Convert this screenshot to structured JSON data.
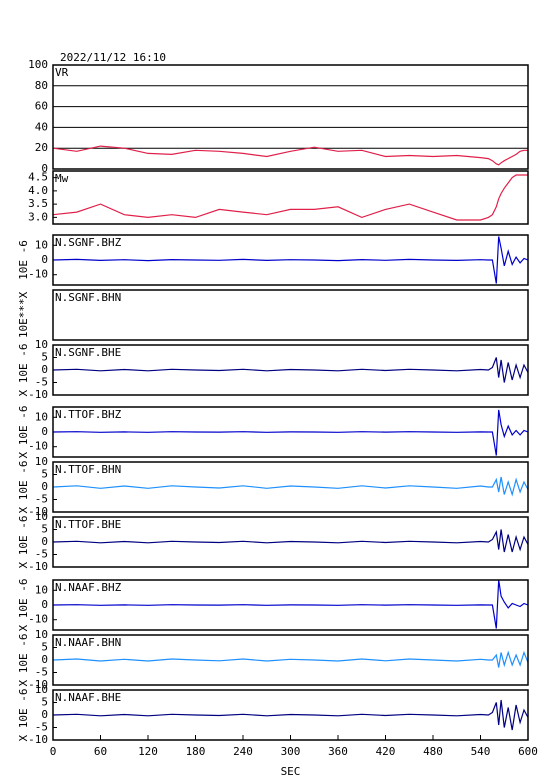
{
  "chart_data": [
    {
      "type": "line",
      "title": "2022/11/12 16:10",
      "label": "VR",
      "x": [
        0,
        30,
        60,
        90,
        120,
        150,
        180,
        210,
        240,
        270,
        300,
        330,
        360,
        390,
        420,
        450,
        480,
        510,
        540,
        550,
        555,
        560,
        563,
        566,
        570,
        575,
        580,
        585,
        590,
        595,
        600
      ],
      "series": [
        {
          "color": "#e0204a",
          "values": [
            20,
            17,
            22,
            20,
            15,
            14,
            18,
            17,
            15,
            12,
            17,
            21,
            17,
            18,
            12,
            13,
            12,
            13,
            11,
            10,
            8,
            5,
            4,
            6,
            8,
            10,
            12,
            14,
            17,
            18,
            18
          ]
        }
      ],
      "xlim": [
        0,
        600
      ],
      "ylim": [
        0,
        100
      ],
      "yticks": [
        0,
        20,
        40,
        60,
        80,
        100
      ],
      "grid": true
    },
    {
      "type": "line",
      "label": "Mw",
      "x": [
        0,
        30,
        60,
        90,
        120,
        150,
        180,
        210,
        240,
        270,
        300,
        330,
        360,
        390,
        420,
        450,
        480,
        510,
        540,
        550,
        555,
        560,
        563,
        566,
        570,
        575,
        580,
        585,
        590,
        595,
        600
      ],
      "series": [
        {
          "color": "#e0204a",
          "values": [
            3.1,
            3.2,
            3.5,
            3.1,
            3.0,
            3.1,
            3.0,
            3.3,
            3.2,
            3.1,
            3.3,
            3.3,
            3.4,
            3.0,
            3.3,
            3.5,
            3.2,
            2.9,
            2.9,
            3.0,
            3.1,
            3.4,
            3.7,
            3.9,
            4.1,
            4.3,
            4.5,
            4.6,
            4.6,
            4.6,
            4.6
          ]
        }
      ],
      "xlim": [
        0,
        600
      ],
      "ylim": [
        2.75,
        4.75
      ],
      "yticks": [
        {
          "value": 3,
          "label": "3.0"
        },
        3.5,
        {
          "value": 4,
          "label": "4.0"
        },
        4.5
      ]
    },
    {
      "type": "line",
      "label": "N.SGNF.BHZ",
      "ylabel": "10E -6",
      "x": [
        0,
        30,
        60,
        90,
        120,
        150,
        180,
        210,
        240,
        270,
        300,
        330,
        360,
        390,
        420,
        450,
        480,
        510,
        540,
        550,
        555,
        560,
        563,
        566,
        570,
        575,
        580,
        585,
        590,
        595,
        600
      ],
      "series": [
        {
          "color": "#0000cc",
          "values": [
            0,
            0.4,
            -0.3,
            0.2,
            -0.4,
            0.3,
            0,
            -0.2,
            0.4,
            -0.3,
            0.2,
            0,
            -0.4,
            0.3,
            -0.2,
            0.4,
            0,
            -0.3,
            0.2,
            0,
            0,
            -16,
            16,
            8,
            -4,
            6,
            -3,
            2,
            -2,
            1,
            0
          ]
        }
      ],
      "xlim": [
        0,
        600
      ],
      "ylim": [
        -17,
        17
      ],
      "yticks": [
        10,
        0,
        -10
      ]
    },
    {
      "type": "line",
      "label": "N.SGNF.BHN",
      "ylabel": "10E***X",
      "series": [],
      "xlim": [
        0,
        600
      ]
    },
    {
      "type": "line",
      "label": "N.SGNF.BHE",
      "ylabel": "X 10E -6",
      "x": [
        0,
        30,
        60,
        90,
        120,
        150,
        180,
        210,
        240,
        270,
        300,
        330,
        360,
        390,
        420,
        450,
        480,
        510,
        540,
        550,
        555,
        560,
        563,
        566,
        570,
        575,
        580,
        585,
        590,
        595,
        600
      ],
      "series": [
        {
          "color": "#000080",
          "values": [
            0,
            0.3,
            -0.3,
            0.2,
            -0.3,
            0.3,
            0,
            -0.2,
            0.3,
            -0.3,
            0.2,
            0,
            -0.3,
            0.3,
            -0.2,
            0.3,
            0,
            -0.3,
            0.2,
            0,
            1,
            5,
            -3,
            4,
            -5,
            3,
            -4,
            2,
            -3,
            2,
            -1
          ]
        }
      ],
      "xlim": [
        0,
        600
      ],
      "ylim": [
        -10,
        10
      ],
      "yticks": [
        10,
        5,
        0,
        -5,
        -10
      ]
    },
    {
      "type": "line",
      "label": "N.TTOF.BHZ",
      "ylabel": "X 10E -6",
      "x": [
        0,
        30,
        60,
        90,
        120,
        150,
        180,
        210,
        240,
        270,
        300,
        330,
        360,
        390,
        420,
        450,
        480,
        510,
        540,
        550,
        555,
        560,
        563,
        566,
        570,
        575,
        580,
        585,
        590,
        595,
        600
      ],
      "series": [
        {
          "color": "#0000cc",
          "values": [
            0,
            0.2,
            -0.2,
            0.1,
            -0.2,
            0.2,
            0,
            -0.1,
            0.2,
            -0.2,
            0.1,
            0,
            -0.2,
            0.2,
            -0.1,
            0.2,
            0,
            -0.2,
            0.1,
            0,
            0,
            -16,
            15,
            5,
            -3,
            4,
            -2,
            1,
            -2,
            1,
            0
          ]
        }
      ],
      "xlim": [
        0,
        600
      ],
      "ylim": [
        -17,
        17
      ],
      "yticks": [
        10,
        0,
        -10
      ]
    },
    {
      "type": "line",
      "label": "N.TTOF.BHN",
      "ylabel": "X 10E -6",
      "x": [
        0,
        30,
        60,
        90,
        120,
        150,
        180,
        210,
        240,
        270,
        300,
        330,
        360,
        390,
        420,
        450,
        480,
        510,
        540,
        550,
        555,
        560,
        563,
        566,
        570,
        575,
        580,
        585,
        590,
        595,
        600
      ],
      "series": [
        {
          "color": "#1e90ff",
          "values": [
            0,
            0.5,
            -0.5,
            0.4,
            -0.5,
            0.5,
            0,
            -0.4,
            0.5,
            -0.5,
            0.4,
            0,
            -0.5,
            0.5,
            -0.4,
            0.5,
            0,
            -0.5,
            0.4,
            0,
            0,
            3,
            -2,
            4,
            -3,
            2,
            -3,
            3,
            -2,
            2,
            -1
          ]
        }
      ],
      "xlim": [
        0,
        600
      ],
      "ylim": [
        -10,
        10
      ],
      "yticks": [
        10,
        5,
        0,
        -5,
        -10
      ]
    },
    {
      "type": "line",
      "label": "N.TTOF.BHE",
      "ylabel": "X 10E -6",
      "x": [
        0,
        30,
        60,
        90,
        120,
        150,
        180,
        210,
        240,
        270,
        300,
        330,
        360,
        390,
        420,
        450,
        480,
        510,
        540,
        550,
        555,
        560,
        563,
        566,
        570,
        575,
        580,
        585,
        590,
        595,
        600
      ],
      "series": [
        {
          "color": "#000080",
          "values": [
            0,
            0.3,
            -0.3,
            0.2,
            -0.3,
            0.3,
            0,
            -0.2,
            0.3,
            -0.3,
            0.2,
            0,
            -0.3,
            0.3,
            -0.2,
            0.3,
            0,
            -0.3,
            0.2,
            0,
            1,
            4,
            -3,
            5,
            -4,
            3,
            -4,
            2,
            -3,
            2,
            -1
          ]
        }
      ],
      "xlim": [
        0,
        600
      ],
      "ylim": [
        -10,
        10
      ],
      "yticks": [
        10,
        5,
        0,
        -5,
        -10
      ]
    },
    {
      "type": "line",
      "label": "N.NAAF.BHZ",
      "ylabel": "X 10E -6",
      "x": [
        0,
        30,
        60,
        90,
        120,
        150,
        180,
        210,
        240,
        270,
        300,
        330,
        360,
        390,
        420,
        450,
        480,
        510,
        540,
        550,
        555,
        560,
        563,
        566,
        570,
        575,
        580,
        585,
        590,
        595,
        600
      ],
      "series": [
        {
          "color": "#0000cc",
          "values": [
            0,
            0.2,
            -0.2,
            0.1,
            -0.2,
            0.2,
            0,
            -0.1,
            0.2,
            -0.2,
            0.1,
            0,
            -0.2,
            0.2,
            -0.1,
            0.2,
            0,
            -0.2,
            0.1,
            0,
            0,
            -16,
            17,
            6,
            2,
            -2,
            1,
            0,
            -1,
            1,
            0
          ]
        }
      ],
      "xlim": [
        0,
        600
      ],
      "ylim": [
        -17,
        17
      ],
      "yticks": [
        10,
        0,
        -10
      ]
    },
    {
      "type": "line",
      "label": "N.NAAF.BHN",
      "ylabel": "X 10E -6",
      "x": [
        0,
        30,
        60,
        90,
        120,
        150,
        180,
        210,
        240,
        270,
        300,
        330,
        360,
        390,
        420,
        450,
        480,
        510,
        540,
        550,
        555,
        560,
        563,
        566,
        570,
        575,
        580,
        585,
        590,
        595,
        600
      ],
      "series": [
        {
          "color": "#1e90ff",
          "values": [
            0,
            0.4,
            -0.4,
            0.3,
            -0.4,
            0.4,
            0,
            -0.3,
            0.4,
            -0.4,
            0.3,
            0,
            -0.4,
            0.4,
            -0.3,
            0.4,
            0,
            -0.4,
            0.3,
            0,
            0,
            2,
            -3,
            3,
            -2,
            3,
            -2,
            2,
            -2,
            3,
            -1
          ]
        }
      ],
      "xlim": [
        0,
        600
      ],
      "ylim": [
        -10,
        10
      ],
      "yticks": [
        10,
        5,
        0,
        -5,
        -10
      ]
    },
    {
      "type": "line",
      "label": "N.NAAF.BHE",
      "ylabel": "X 10E -6",
      "xlabel": "SEC",
      "x": [
        0,
        30,
        60,
        90,
        120,
        150,
        180,
        210,
        240,
        270,
        300,
        330,
        360,
        390,
        420,
        450,
        480,
        510,
        540,
        550,
        555,
        560,
        563,
        566,
        570,
        575,
        580,
        585,
        590,
        595,
        600
      ],
      "series": [
        {
          "color": "#000080",
          "values": [
            0,
            0.3,
            -0.3,
            0.2,
            -0.3,
            0.3,
            0,
            -0.2,
            0.3,
            -0.3,
            0.2,
            0,
            -0.3,
            0.3,
            -0.2,
            0.3,
            0,
            -0.3,
            0.2,
            0,
            1,
            5,
            -4,
            6,
            -5,
            3,
            -6,
            4,
            -3,
            2,
            -1
          ]
        }
      ],
      "xlim": [
        0,
        600
      ],
      "ylim": [
        -10,
        10
      ],
      "yticks": [
        10,
        5,
        0,
        -5,
        -10
      ],
      "xticks": [
        0,
        60,
        120,
        180,
        240,
        300,
        360,
        420,
        480,
        540,
        600
      ]
    }
  ]
}
